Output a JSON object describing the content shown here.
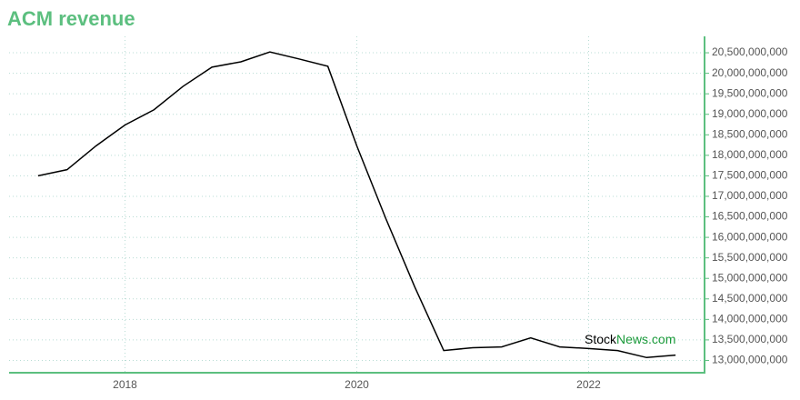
{
  "chart_data": {
    "type": "line",
    "title": "ACM revenue",
    "x": [
      2017.25,
      2017.5,
      2017.75,
      2018.0,
      2018.25,
      2018.5,
      2018.75,
      2019.0,
      2019.25,
      2019.5,
      2019.75,
      2020.0,
      2020.25,
      2020.5,
      2020.75,
      2021.0,
      2021.25,
      2021.5,
      2021.75,
      2022.0,
      2022.25,
      2022.5,
      2022.75
    ],
    "series": [
      {
        "name": "ACM revenue",
        "color": "#000000",
        "values": [
          17500000000,
          17650000000,
          18230000000,
          18740000000,
          19110000000,
          19680000000,
          20150000000,
          20280000000,
          20520000000,
          20350000000,
          20170000000,
          18230000000,
          16460000000,
          14790000000,
          13240000000,
          13310000000,
          13330000000,
          13550000000,
          13330000000,
          13290000000,
          13240000000,
          13070000000,
          13130000000
        ]
      }
    ],
    "xlim": [
      2017.0,
      2023.0
    ],
    "xticks": [
      2018,
      2020,
      2022
    ],
    "ylim": [
      12700000000,
      20900000000
    ],
    "yticks": [
      {
        "value": 13000000000,
        "label": "13,000,000,000"
      },
      {
        "value": 13500000000,
        "label": "13,500,000,000"
      },
      {
        "value": 14000000000,
        "label": "14,000,000,000"
      },
      {
        "value": 14500000000,
        "label": "14,500,000,000"
      },
      {
        "value": 15000000000,
        "label": "15,000,000,000"
      },
      {
        "value": 15500000000,
        "label": "15,500,000,000"
      },
      {
        "value": 16000000000,
        "label": "16,000,000,000"
      },
      {
        "value": 16500000000,
        "label": "16,500,000,000"
      },
      {
        "value": 17000000000,
        "label": "17,000,000,000"
      },
      {
        "value": 17500000000,
        "label": "17,500,000,000"
      },
      {
        "value": 18000000000,
        "label": "18,000,000,000"
      },
      {
        "value": 18500000000,
        "label": "18,500,000,000"
      },
      {
        "value": 19000000000,
        "label": "19,000,000,000"
      },
      {
        "value": 19500000000,
        "label": "19,500,000,000"
      },
      {
        "value": 20000000000,
        "label": "20,000,000,000"
      },
      {
        "value": 20500000000,
        "label": "20,500,000,000"
      }
    ],
    "grid": true,
    "axis_color": "#5cbf7f",
    "watermark_stock": "Stock",
    "watermark_news": "News.com"
  }
}
